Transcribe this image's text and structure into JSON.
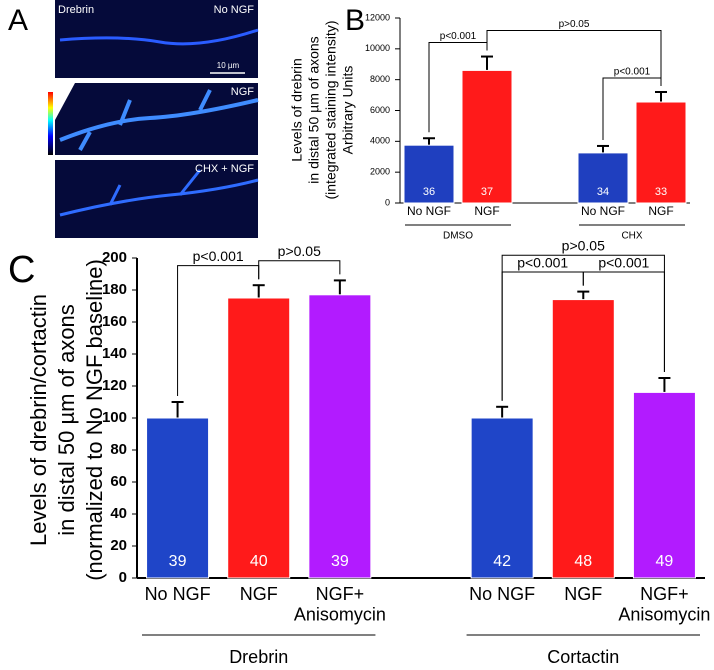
{
  "panel_a": {
    "letter": "A",
    "stain": "Drebrin",
    "labels": [
      "No NGF",
      "NGF",
      "CHX + NGF"
    ],
    "scale_bar": "10 µm"
  },
  "chart_data": [
    {
      "type": "bar",
      "letter": "B",
      "ylabel": [
        "Levels of drebrin",
        "in distal 50 µm of axons",
        "(integrated staining intensity)",
        "Arbitrary Units"
      ],
      "categories": [
        "No NGF",
        "NGF",
        "No NGF",
        "NGF"
      ],
      "groups": [
        {
          "name": "DMSO",
          "size": 2
        },
        {
          "name": "CHX",
          "size": 2
        }
      ],
      "series": [
        {
          "values": [
            3750,
            8600,
            3250,
            6550
          ],
          "errors": [
            450,
            900,
            450,
            650
          ],
          "colors": [
            "#1f3fbf",
            "#ff1a1a",
            "#1f3fbf",
            "#ff1a1a"
          ],
          "n": [
            36,
            37,
            34,
            33
          ]
        }
      ],
      "ylim": [
        0,
        12000
      ],
      "yticks": [
        0,
        2000,
        4000,
        6000,
        8000,
        10000,
        12000
      ],
      "annotations": [
        {
          "text": "p<0.001",
          "from": 0,
          "to": 1
        },
        {
          "text": "p<0.001",
          "from": 2,
          "to": 3
        },
        {
          "text": "p>0.05",
          "from": 1,
          "to": 3
        }
      ]
    },
    {
      "type": "bar",
      "letter": "C",
      "ylabel": [
        "Levels of drebrin/cortactin",
        "in distal 50 µm of axons",
        "(normalized to No NGF baseline)"
      ],
      "categories": [
        "No NGF",
        "NGF",
        [
          "NGF+",
          "Anisomycin"
        ],
        "No NGF",
        "NGF",
        [
          "NGF+",
          "Anisomycin"
        ]
      ],
      "groups": [
        {
          "name": "Drebrin",
          "size": 3
        },
        {
          "name": "Cortactin",
          "size": 3
        }
      ],
      "series": [
        {
          "values": [
            100,
            175,
            177,
            100,
            174,
            116
          ],
          "errors": [
            10,
            8,
            9,
            7,
            5,
            9
          ],
          "colors": [
            "#1f45c8",
            "#ff1a1a",
            "#b21bff",
            "#1f45c8",
            "#ff1a1a",
            "#b21bff"
          ],
          "n": [
            39,
            40,
            39,
            42,
            48,
            49
          ]
        }
      ],
      "ylim": [
        0,
        200
      ],
      "yticks": [
        0,
        20,
        40,
        60,
        80,
        100,
        120,
        140,
        160,
        180,
        200
      ],
      "annotations": [
        {
          "text": "p<0.001",
          "from": 0,
          "to": 1
        },
        {
          "text": "p>0.05",
          "from": 1,
          "to": 2
        },
        {
          "text": "p<0.001",
          "from": 3,
          "to": 4
        },
        {
          "text": "p<0.001",
          "from": 4,
          "to": 5
        },
        {
          "text": "p>0.05",
          "from": 3,
          "to": 5
        }
      ]
    }
  ]
}
